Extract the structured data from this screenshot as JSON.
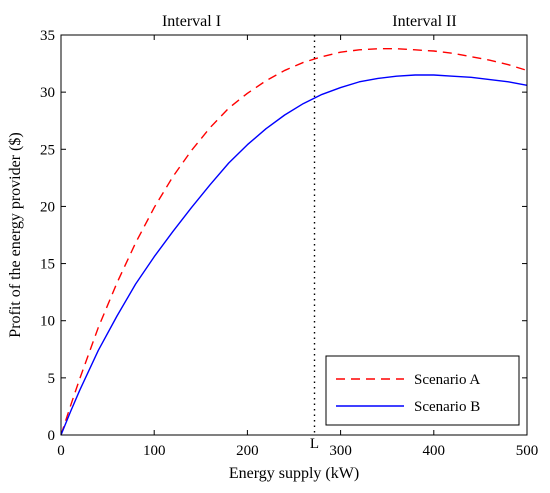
{
  "chart_data": {
    "type": "line",
    "title": "",
    "xlabel": "Energy supply (kW)",
    "ylabel": "Profit of the energy provider ($)",
    "xlim": [
      0,
      500
    ],
    "ylim": [
      0,
      35
    ],
    "xticks": [
      0,
      100,
      200,
      300,
      400,
      500
    ],
    "yticks": [
      0,
      5,
      10,
      15,
      20,
      25,
      30,
      35
    ],
    "grid": false,
    "legend_position": "bottom-right",
    "divider": {
      "x": 272,
      "label": "L"
    },
    "intervals": [
      {
        "label": "Interval I",
        "x": 140
      },
      {
        "label": "Interval II",
        "x": 390
      }
    ],
    "series": [
      {
        "name": "Scenario A",
        "color": "#ff0000",
        "dash": "dashed",
        "x": [
          0,
          10,
          20,
          40,
          60,
          80,
          100,
          120,
          140,
          160,
          180,
          200,
          220,
          240,
          260,
          280,
          300,
          320,
          340,
          360,
          380,
          400,
          420,
          440,
          460,
          480,
          500
        ],
        "y": [
          0,
          2.5,
          4.9,
          9.4,
          13.3,
          16.8,
          19.9,
          22.6,
          24.9,
          26.9,
          28.6,
          29.9,
          31.0,
          31.9,
          32.6,
          33.1,
          33.5,
          33.7,
          33.8,
          33.8,
          33.7,
          33.6,
          33.4,
          33.1,
          32.8,
          32.4,
          31.9
        ]
      },
      {
        "name": "Scenario B",
        "color": "#0000ff",
        "dash": "solid",
        "x": [
          0,
          10,
          20,
          40,
          60,
          80,
          100,
          120,
          140,
          160,
          180,
          200,
          220,
          240,
          260,
          280,
          300,
          320,
          340,
          360,
          380,
          400,
          420,
          440,
          460,
          480,
          500
        ],
        "y": [
          0,
          2.0,
          3.9,
          7.4,
          10.4,
          13.2,
          15.6,
          17.8,
          19.9,
          21.9,
          23.8,
          25.4,
          26.8,
          28.0,
          29.0,
          29.8,
          30.4,
          30.9,
          31.2,
          31.4,
          31.5,
          31.5,
          31.4,
          31.3,
          31.1,
          30.9,
          30.6
        ]
      }
    ]
  }
}
